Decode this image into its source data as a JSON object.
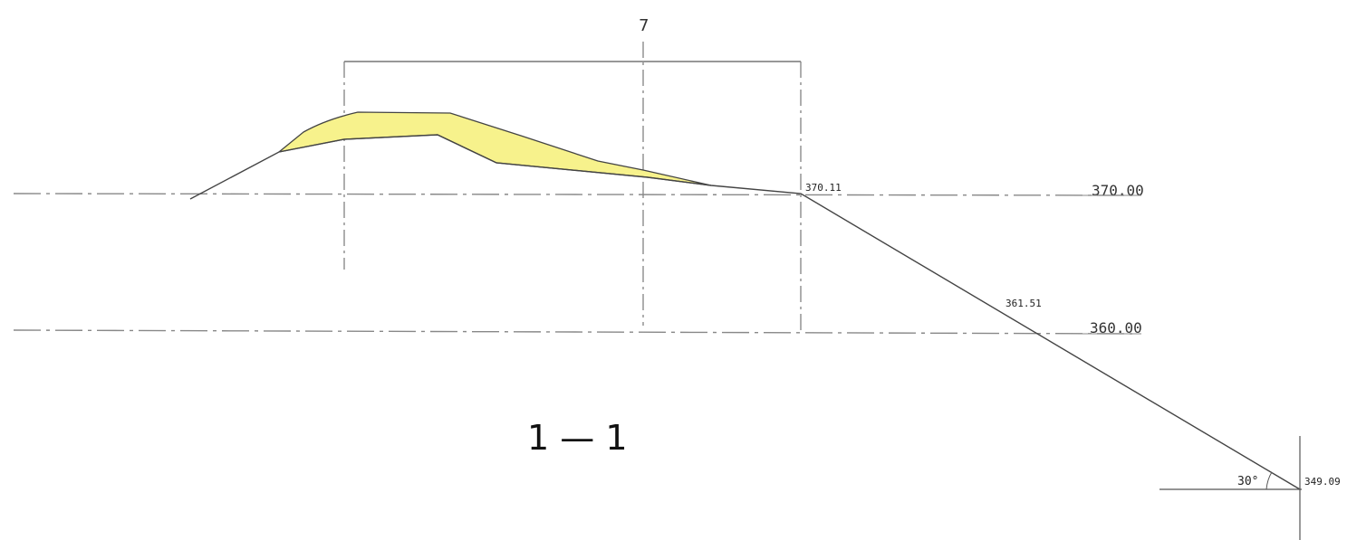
{
  "drawing": {
    "grid_axis_label": "7",
    "section_title": "1 — 1",
    "level_lines": [
      {
        "label": "370.00"
      },
      {
        "label": "360.00"
      }
    ],
    "elevation_points": [
      {
        "label": "370.11"
      },
      {
        "label": "361.51"
      },
      {
        "label": "349.09"
      }
    ],
    "slope_angle": "30°",
    "colors": {
      "fill_zone": "#f7f28c",
      "line": "#444444",
      "dash": "#888888"
    }
  }
}
